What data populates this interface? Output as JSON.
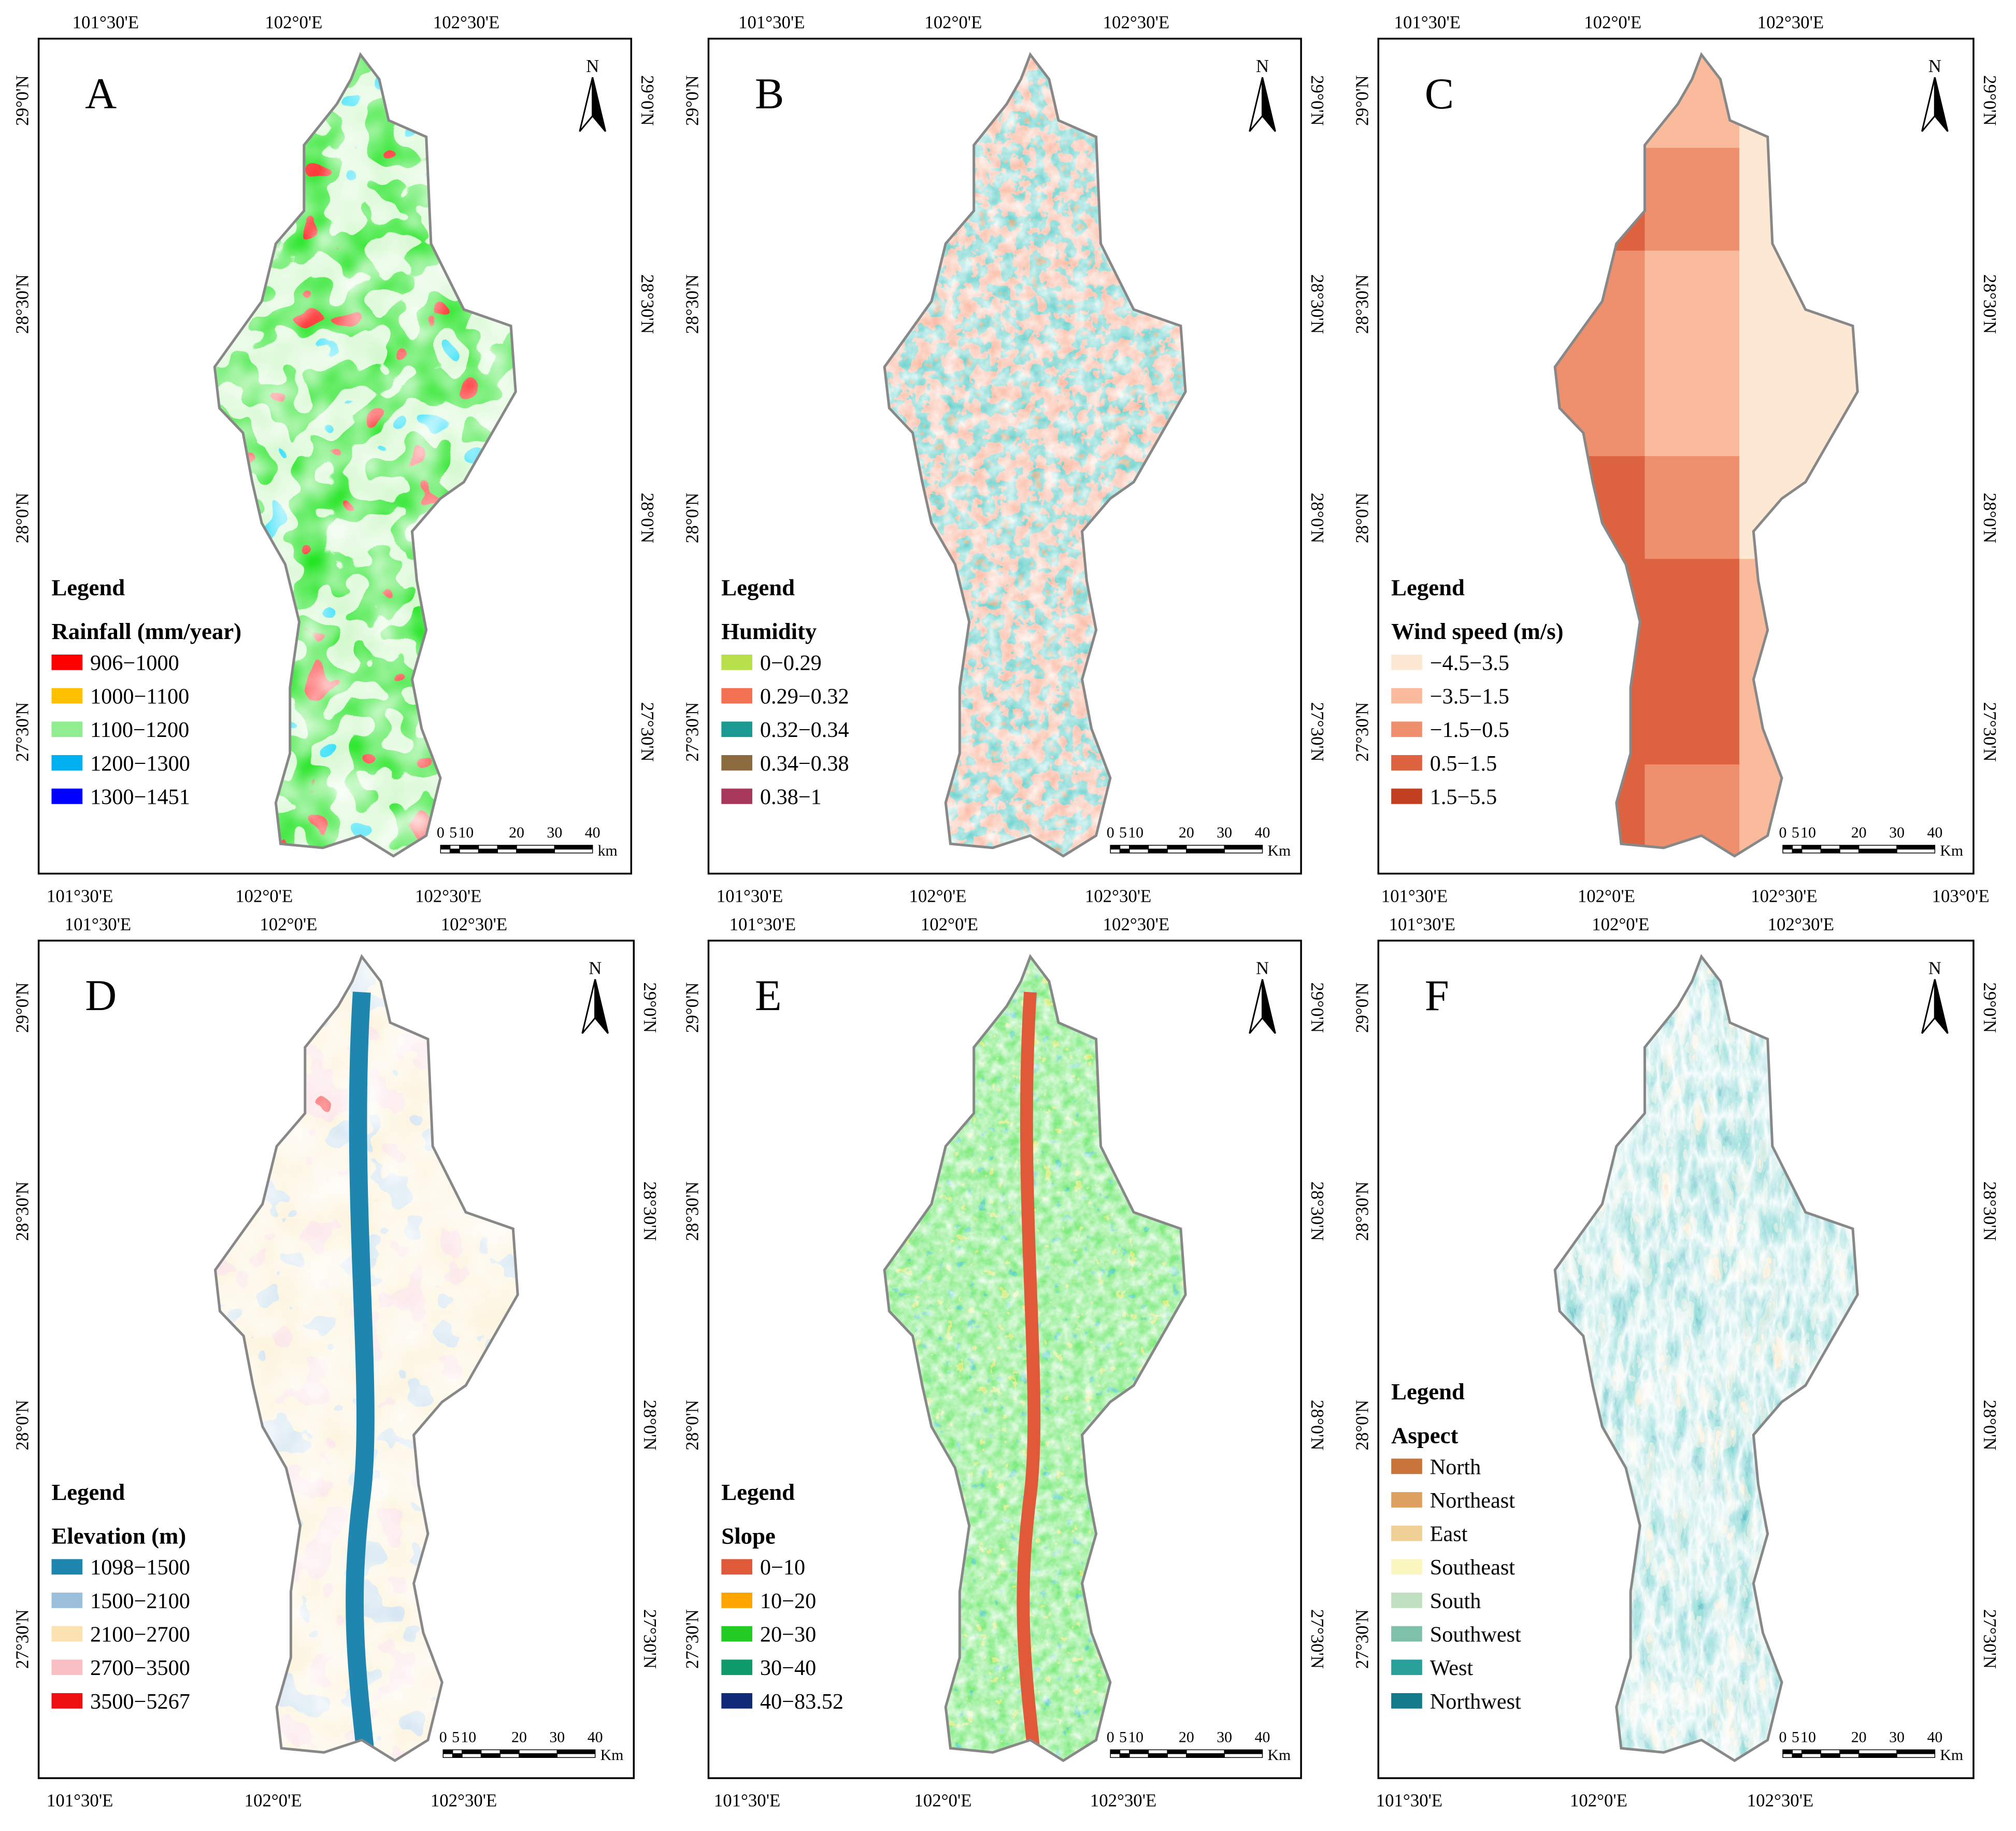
{
  "panels": [
    {
      "letter": "A",
      "top_ticks": [
        "101°30'E",
        "102°0'E",
        "102°30'E"
      ],
      "bottom_ticks": [
        "101°30'E",
        "102°0'E",
        "102°30'E"
      ],
      "left_ticks": [
        "29°0'N",
        "28°30'N",
        "28°0'N",
        "27°30'N"
      ],
      "right_ticks": [
        "29°0'N",
        "28°30'N",
        "28°0'N",
        "27°30'N"
      ],
      "legend_heading": "Legend",
      "legend_title": "Rainfall (mm/year)",
      "legend_items": [
        {
          "label": "906−1000",
          "color": "#ff0000"
        },
        {
          "label": "1000−1100",
          "color": "#ffc000"
        },
        {
          "label": "1100−1200",
          "color": "#90ee90"
        },
        {
          "label": "1200−1300",
          "color": "#00b0f0"
        },
        {
          "label": "1300−1451",
          "color": "#0000ff"
        }
      ],
      "scale_labels": [
        "0",
        "5",
        "10",
        "20",
        "30",
        "40"
      ],
      "scale_unit": "km",
      "north_label": "N"
    },
    {
      "letter": "B",
      "top_ticks": [
        "101°30'E",
        "102°0'E",
        "102°30'E"
      ],
      "bottom_ticks": [
        "101°30'E",
        "102°0'E",
        "102°30'E"
      ],
      "left_ticks": [
        "29°0'N",
        "28°30'N",
        "28°0'N",
        "27°30'N"
      ],
      "right_ticks": [
        "29°0'N",
        "28°30'N",
        "28°0'N",
        "27°30'N"
      ],
      "legend_heading": "Legend",
      "legend_title": "Humidity",
      "legend_items": [
        {
          "label": "0−0.29",
          "color": "#b8e04a"
        },
        {
          "label": "0.29−0.32",
          "color": "#f27252"
        },
        {
          "label": "0.32−0.34",
          "color": "#1a9a92"
        },
        {
          "label": "0.34−0.38",
          "color": "#8b6a3e"
        },
        {
          "label": "0.38−1",
          "color": "#a8385a"
        }
      ],
      "scale_labels": [
        "0",
        "5",
        "10",
        "20",
        "30",
        "40"
      ],
      "scale_unit": "Km",
      "north_label": "N"
    },
    {
      "letter": "C",
      "top_ticks": [
        "101°30'E",
        "102°0'E",
        "102°30'E"
      ],
      "bottom_ticks": [
        "101°30'E",
        "102°0'E",
        "102°30'E",
        "103°0'E"
      ],
      "left_ticks": [
        "29°0'N",
        "28°30'N",
        "28°0'N",
        "27°30'N"
      ],
      "right_ticks": [
        "29°0'N",
        "28°30'N",
        "28°0'N",
        "27°30'N"
      ],
      "legend_heading": "Legend",
      "legend_title": "Wind speed (m/s)",
      "legend_items": [
        {
          "label": "−4.5−3.5",
          "color": "#fde8d4"
        },
        {
          "label": "−3.5−1.5",
          "color": "#f9bb9c"
        },
        {
          "label": "−1.5−0.5",
          "color": "#ee8f6e"
        },
        {
          "label": "0.5−1.5",
          "color": "#dc6240"
        },
        {
          "label": "1.5−5.5",
          "color": "#c0401f"
        }
      ],
      "scale_labels": [
        "0",
        "5",
        "10",
        "20",
        "30",
        "40"
      ],
      "scale_unit": "Km",
      "north_label": "N"
    },
    {
      "letter": "D",
      "top_ticks": [
        "101°30'E",
        "102°0'E",
        "102°30'E"
      ],
      "bottom_ticks": [
        "101°30'E",
        "102°0'E",
        "102°30'E"
      ],
      "left_ticks": [
        "29°0'N",
        "28°30'N",
        "28°0'N",
        "27°30'N"
      ],
      "right_ticks": [
        "29°0'N",
        "28°30'N",
        "28°0'N",
        "27°30'N"
      ],
      "legend_heading": "Legend",
      "legend_title": "Elevation (m)",
      "legend_items": [
        {
          "label": "1098−1500",
          "color": "#1f86b0"
        },
        {
          "label": "1500−2100",
          "color": "#9cc0dc"
        },
        {
          "label": "2100−2700",
          "color": "#fbe2b0"
        },
        {
          "label": "2700−3500",
          "color": "#f8c0c4"
        },
        {
          "label": "3500−5267",
          "color": "#ee1010"
        }
      ],
      "scale_labels": [
        "0",
        "5",
        "10",
        "20",
        "30",
        "40"
      ],
      "scale_unit": "Km",
      "north_label": "N"
    },
    {
      "letter": "E",
      "top_ticks": [
        "101°30'E",
        "102°0'E",
        "102°30'E"
      ],
      "bottom_ticks": [
        "101°30'E",
        "102°0'E",
        "102°30'E"
      ],
      "left_ticks": [
        "29°0'N",
        "28°30'N",
        "28°0'N",
        "27°30'N"
      ],
      "right_ticks": [
        "29°0'N",
        "28°30'N",
        "28°0'N",
        "27°30'N"
      ],
      "legend_heading": "Legend",
      "legend_title": "Slope",
      "legend_items": [
        {
          "label": "0−10",
          "color": "#e05a3a"
        },
        {
          "label": "10−20",
          "color": "#ffa500"
        },
        {
          "label": "20−30",
          "color": "#22cc22"
        },
        {
          "label": "30−40",
          "color": "#0e9a6a"
        },
        {
          "label": "40−83.52",
          "color": "#102a78"
        }
      ],
      "scale_labels": [
        "0",
        "5",
        "10",
        "20",
        "30",
        "40"
      ],
      "scale_unit": "Km",
      "north_label": "N"
    },
    {
      "letter": "F",
      "top_ticks": [
        "101°30'E",
        "102°0'E",
        "102°30'E"
      ],
      "bottom_ticks": [
        "101°30'E",
        "102°0'E",
        "102°30'E"
      ],
      "left_ticks": [
        "29°0'N",
        "28°30'N",
        "28°0'N",
        "27°30'N"
      ],
      "right_ticks": [
        "29°0'N",
        "28°30'N",
        "28°0'N",
        "27°30'N"
      ],
      "legend_heading": "Legend",
      "legend_title": "Aspect",
      "legend_items": [
        {
          "label": "North",
          "color": "#c8743a"
        },
        {
          "label": "Northeast",
          "color": "#dea060"
        },
        {
          "label": "East",
          "color": "#f0cf94"
        },
        {
          "label": "Southeast",
          "color": "#fbf6c0"
        },
        {
          "label": "South",
          "color": "#c0e0c0"
        },
        {
          "label": "Southwest",
          "color": "#7ec0aa"
        },
        {
          "label": "West",
          "color": "#2aa09a"
        },
        {
          "label": "Northwest",
          "color": "#137a8a"
        }
      ],
      "scale_labels": [
        "0",
        "5",
        "10",
        "20",
        "30",
        "40"
      ],
      "scale_unit": "Km",
      "north_label": "N"
    }
  ]
}
